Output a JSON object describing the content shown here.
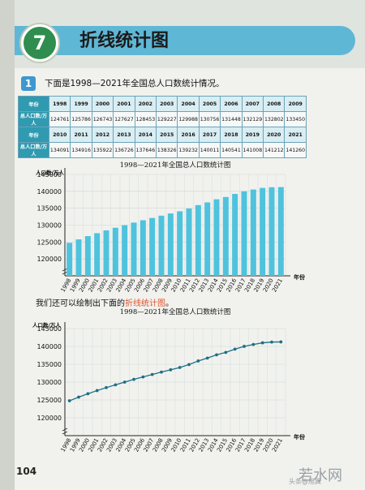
{
  "lesson": {
    "number": "7",
    "title": "折线统计图"
  },
  "problem": {
    "number": "1",
    "text": "下面是1998—2021年全国总人口数统计情况。"
  },
  "table": {
    "year_header": "年份",
    "value_header": "总人口数/万人",
    "rows": [
      {
        "years": [
          "1998",
          "1999",
          "2000",
          "2001",
          "2002",
          "2003",
          "2004",
          "2005",
          "2006",
          "2007",
          "2008",
          "2009"
        ],
        "values": [
          "124761",
          "125786",
          "126743",
          "127627",
          "128453",
          "129227",
          "129988",
          "130756",
          "131448",
          "132129",
          "132802",
          "133450"
        ]
      },
      {
        "years": [
          "2010",
          "2011",
          "2012",
          "2013",
          "2014",
          "2015",
          "2016",
          "2017",
          "2018",
          "2019",
          "2020",
          "2021"
        ],
        "values": [
          "134091",
          "134916",
          "135922",
          "136726",
          "137646",
          "138326",
          "139232",
          "140011",
          "140541",
          "141008",
          "141212",
          "141260"
        ]
      }
    ]
  },
  "caption": {
    "prefix": "我们还可以绘制出下面的",
    "highlight": "折线统计图",
    "suffix": "。"
  },
  "page_number": "104",
  "watermark": {
    "brand": "若水网",
    "sub": "头条@旭翼"
  },
  "colors": {
    "bar": "#4fc3dd",
    "line": "#1f6f86",
    "grid": "#cfd7d8"
  },
  "chart_data": [
    {
      "type": "bar",
      "title": "1998—2021年全国总人口数统计图",
      "ylabel": "人口数/万人",
      "xlabel": "年份",
      "categories": [
        "1998",
        "1999",
        "2000",
        "2001",
        "2002",
        "2003",
        "2004",
        "2005",
        "2006",
        "2007",
        "2008",
        "2009",
        "2010",
        "2011",
        "2012",
        "2013",
        "2014",
        "2015",
        "2016",
        "2017",
        "2018",
        "2019",
        "2020",
        "2021"
      ],
      "values": [
        124761,
        125786,
        126743,
        127627,
        128453,
        129227,
        129988,
        130756,
        131448,
        132129,
        132802,
        133450,
        134091,
        134916,
        135922,
        136726,
        137646,
        138326,
        139232,
        140011,
        140541,
        141008,
        141212,
        141260
      ],
      "ylim": [
        115000,
        145000
      ],
      "yticks": [
        120000,
        125000,
        130000,
        135000,
        140000,
        145000
      ],
      "grid": true
    },
    {
      "type": "line",
      "title": "1998—2021年全国总人口数统计图",
      "ylabel": "人口数/万人",
      "xlabel": "年份",
      "categories": [
        "1998",
        "1999",
        "2000",
        "2001",
        "2002",
        "2003",
        "2004",
        "2005",
        "2006",
        "2007",
        "2008",
        "2009",
        "2010",
        "2011",
        "2012",
        "2013",
        "2014",
        "2015",
        "2016",
        "2017",
        "2018",
        "2019",
        "2020",
        "2021"
      ],
      "values": [
        124761,
        125786,
        126743,
        127627,
        128453,
        129227,
        129988,
        130756,
        131448,
        132129,
        132802,
        133450,
        134091,
        134916,
        135922,
        136726,
        137646,
        138326,
        139232,
        140011,
        140541,
        141008,
        141212,
        141260
      ],
      "ylim": [
        115000,
        145000
      ],
      "yticks": [
        120000,
        125000,
        130000,
        135000,
        140000,
        145000
      ],
      "grid": true
    }
  ]
}
